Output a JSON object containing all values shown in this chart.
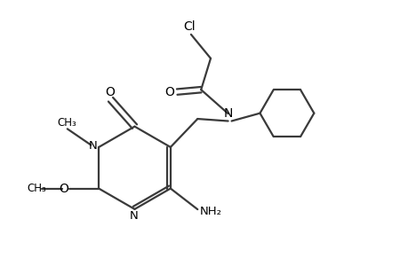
{
  "bg_color": "#ffffff",
  "line_color": "#3a3a3a",
  "line_width": 1.6,
  "figsize": [
    4.6,
    3.0
  ],
  "dpi": 100,
  "xlim": [
    0,
    9.2
  ],
  "ylim": [
    0,
    6.0
  ]
}
